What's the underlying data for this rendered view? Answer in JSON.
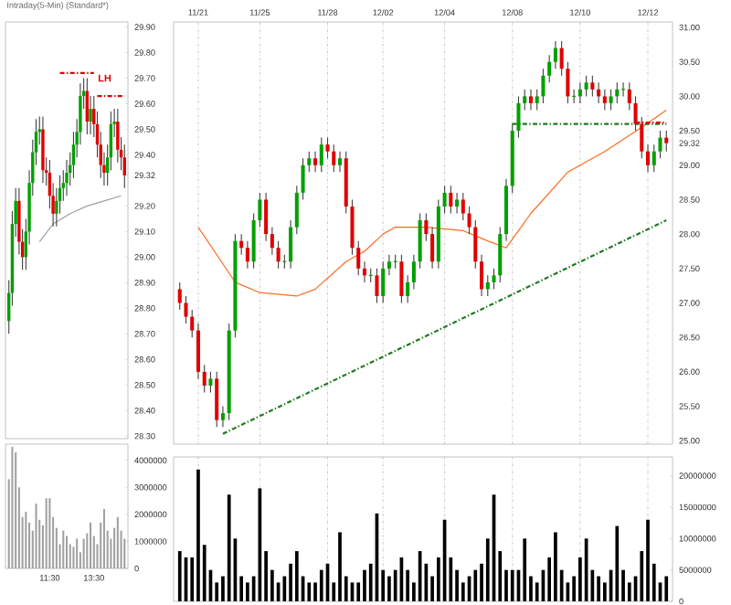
{
  "chart_data": [
    {
      "type": "candlestick",
      "title": "Intraday(5-Min) (Standard*)",
      "categories": [
        null,
        null,
        null,
        null,
        null,
        null,
        null,
        null,
        null,
        null,
        null,
        null,
        null,
        null,
        null,
        null,
        null,
        null,
        null,
        null,
        null,
        null,
        null,
        null,
        null,
        null,
        null,
        null,
        null,
        null,
        null,
        null,
        null,
        null,
        null
      ],
      "ohlc": [
        [
          28.75,
          28.91,
          28.7,
          28.86
        ],
        [
          28.86,
          29.18,
          28.81,
          29.13
        ],
        [
          29.13,
          29.27,
          29.08,
          29.22
        ],
        [
          29.22,
          29.27,
          29.01,
          29.06
        ],
        [
          29.06,
          29.11,
          28.95,
          29.0
        ],
        [
          29.0,
          29.15,
          28.95,
          29.1
        ],
        [
          29.1,
          29.34,
          29.05,
          29.29
        ],
        [
          29.29,
          29.46,
          29.24,
          29.41
        ],
        [
          29.41,
          29.54,
          29.36,
          29.49
        ],
        [
          29.49,
          29.55,
          29.44,
          29.5
        ],
        [
          29.5,
          29.55,
          29.29,
          29.34
        ],
        [
          29.34,
          29.39,
          29.28,
          29.33
        ],
        [
          29.33,
          29.38,
          29.19,
          29.24
        ],
        [
          29.24,
          29.29,
          29.12,
          29.17
        ],
        [
          29.17,
          29.27,
          29.12,
          29.22
        ],
        [
          29.22,
          29.32,
          29.17,
          29.27
        ],
        [
          29.27,
          29.34,
          29.22,
          29.29
        ],
        [
          29.29,
          29.38,
          29.24,
          29.33
        ],
        [
          29.33,
          29.41,
          29.28,
          29.36
        ],
        [
          29.36,
          29.49,
          29.31,
          29.44
        ],
        [
          29.44,
          29.54,
          29.39,
          29.49
        ],
        [
          29.49,
          29.68,
          29.44,
          29.63
        ],
        [
          29.63,
          29.7,
          29.58,
          29.65
        ],
        [
          29.65,
          29.7,
          29.48,
          29.53
        ],
        [
          29.53,
          29.63,
          29.48,
          29.58
        ],
        [
          29.58,
          29.63,
          29.47,
          29.52
        ],
        [
          29.52,
          29.57,
          29.39,
          29.44
        ],
        [
          29.44,
          29.49,
          29.31,
          29.36
        ],
        [
          29.36,
          29.41,
          29.28,
          29.33
        ],
        [
          29.33,
          29.44,
          29.28,
          29.39
        ],
        [
          29.39,
          29.57,
          29.34,
          29.52
        ],
        [
          29.52,
          29.58,
          29.47,
          29.53
        ],
        [
          29.53,
          29.58,
          29.37,
          29.42
        ],
        [
          29.42,
          29.47,
          29.34,
          29.39
        ],
        [
          29.39,
          29.44,
          29.27,
          29.32
        ]
      ],
      "series": [
        {
          "type": "line",
          "color": "#a0a0a0",
          "values": [
            null,
            null,
            null,
            null,
            null,
            null,
            null,
            null,
            null,
            29.06,
            null,
            null,
            null,
            29.13,
            null,
            null,
            null,
            null,
            29.17,
            null,
            null,
            null,
            null,
            29.2,
            null,
            null,
            null,
            null,
            29.22,
            null,
            null,
            null,
            null,
            29.24,
            null
          ]
        },
        {
          "type": "line",
          "color": "#e00000",
          "line_style": "dashed",
          "values": [
            null,
            null,
            null,
            null,
            null,
            null,
            null,
            null,
            null,
            null,
            null,
            null,
            null,
            null,
            null,
            29.72,
            null,
            null,
            null,
            null,
            null,
            null,
            null,
            null,
            null,
            29.72,
            null,
            null,
            null,
            null,
            null,
            null,
            null,
            null,
            null
          ]
        },
        {
          "type": "line",
          "color": "#e00000",
          "line_style": "dashed",
          "values": [
            null,
            null,
            null,
            null,
            null,
            null,
            null,
            null,
            null,
            null,
            null,
            null,
            null,
            null,
            null,
            null,
            null,
            null,
            null,
            null,
            null,
            null,
            null,
            null,
            null,
            null,
            29.63,
            null,
            null,
            null,
            null,
            null,
            null,
            null,
            29.63
          ]
        }
      ],
      "annotations": [
        "LH"
      ],
      "ylim": [
        28.29,
        29.92
      ],
      "yticks": [
        {
          "value": 28.3,
          "label": "28.30"
        },
        {
          "value": 28.4,
          "label": "28.40"
        },
        {
          "value": 28.5,
          "label": "28.50"
        },
        {
          "value": 28.6,
          "label": "28.60"
        },
        {
          "value": 28.7,
          "label": "28.70"
        },
        {
          "value": 28.8,
          "label": "28.80"
        },
        {
          "value": 28.9,
          "label": "28.90"
        },
        {
          "value": 29.0,
          "label": "29.00"
        },
        {
          "value": 29.1,
          "label": "29.10"
        },
        {
          "value": 29.2,
          "label": "29.20"
        },
        29.32,
        {
          "value": 29.4,
          "label": "29.40"
        },
        {
          "value": 29.5,
          "label": "29.50"
        },
        {
          "value": 29.6,
          "label": "29.60"
        },
        {
          "value": 29.7,
          "label": "29.70"
        },
        {
          "value": 29.8,
          "label": "29.80"
        },
        {
          "value": 29.9,
          "label": "29.90"
        }
      ]
    },
    {
      "type": "candlestick",
      "categories": [
        null,
        null,
        null,
        "11/21",
        null,
        null,
        null,
        null,
        null,
        null,
        null,
        null,
        null,
        "11/25",
        null,
        null,
        null,
        null,
        null,
        null,
        null,
        null,
        null,
        null,
        "11/28",
        null,
        null,
        null,
        null,
        null,
        null,
        null,
        null,
        "12/02",
        null,
        null,
        null,
        null,
        null,
        null,
        null,
        null,
        null,
        "12/04",
        null,
        null,
        null,
        null,
        null,
        null,
        null,
        null,
        null,
        null,
        "12/08",
        null,
        null,
        null,
        null,
        null,
        null,
        null,
        null,
        null,
        null,
        "12/10",
        null,
        null,
        null,
        null,
        null,
        null,
        null,
        null,
        null,
        null,
        "12/12",
        null,
        null,
        null
      ],
      "ohlc": [
        [
          27.2,
          27.3,
          26.9,
          27.0
        ],
        [
          27.0,
          27.1,
          26.7,
          26.8
        ],
        [
          26.8,
          26.9,
          26.5,
          26.6
        ],
        [
          26.6,
          26.7,
          25.9,
          26.0
        ],
        [
          26.0,
          26.1,
          25.7,
          25.8
        ],
        [
          25.8,
          26.0,
          25.7,
          25.9
        ],
        [
          25.9,
          26.0,
          25.2,
          25.3
        ],
        [
          25.3,
          25.5,
          25.2,
          25.4
        ],
        [
          25.4,
          26.7,
          25.3,
          26.6
        ],
        [
          26.6,
          28.0,
          26.5,
          27.9
        ],
        [
          27.9,
          28.0,
          27.7,
          27.8
        ],
        [
          27.8,
          27.9,
          27.5,
          27.6
        ],
        [
          27.6,
          28.3,
          27.5,
          28.2
        ],
        [
          28.2,
          28.6,
          28.1,
          28.5
        ],
        [
          28.5,
          28.6,
          27.9,
          28.0
        ],
        [
          28.0,
          28.1,
          27.7,
          27.8
        ],
        [
          27.8,
          27.9,
          27.5,
          27.6
        ],
        [
          27.6,
          27.7,
          27.5,
          27.6
        ],
        [
          27.6,
          28.2,
          27.5,
          28.1
        ],
        [
          28.1,
          28.7,
          28.0,
          28.6
        ],
        [
          28.6,
          29.1,
          28.5,
          29.0
        ],
        [
          29.0,
          29.2,
          28.9,
          29.1
        ],
        [
          29.1,
          29.2,
          28.9,
          29.0
        ],
        [
          29.0,
          29.4,
          28.9,
          29.3
        ],
        [
          29.3,
          29.4,
          29.1,
          29.2
        ],
        [
          29.2,
          29.3,
          28.9,
          29.0
        ],
        [
          29.0,
          29.2,
          28.9,
          29.1
        ],
        [
          29.1,
          29.2,
          28.3,
          28.4
        ],
        [
          28.4,
          28.5,
          27.7,
          27.8
        ],
        [
          27.8,
          27.9,
          27.4,
          27.5
        ],
        [
          27.5,
          27.6,
          27.3,
          27.4
        ],
        [
          27.4,
          27.5,
          27.3,
          27.4
        ],
        [
          27.4,
          27.5,
          27.0,
          27.1
        ],
        [
          27.1,
          27.6,
          27.0,
          27.5
        ],
        [
          27.5,
          27.7,
          27.4,
          27.6
        ],
        [
          27.6,
          27.7,
          27.5,
          27.6
        ],
        [
          27.6,
          27.7,
          27.0,
          27.1
        ],
        [
          27.1,
          27.4,
          27.0,
          27.3
        ],
        [
          27.3,
          27.7,
          27.2,
          27.6
        ],
        [
          27.6,
          28.3,
          27.5,
          28.2
        ],
        [
          28.2,
          28.3,
          27.9,
          28.0
        ],
        [
          28.0,
          28.1,
          27.5,
          27.6
        ],
        [
          27.6,
          28.5,
          27.5,
          28.4
        ],
        [
          28.4,
          28.7,
          28.3,
          28.6
        ],
        [
          28.6,
          28.7,
          28.3,
          28.4
        ],
        [
          28.4,
          28.6,
          28.3,
          28.5
        ],
        [
          28.5,
          28.6,
          28.2,
          28.3
        ],
        [
          28.3,
          28.4,
          28.0,
          28.1
        ],
        [
          28.1,
          28.2,
          27.5,
          27.6
        ],
        [
          27.6,
          27.7,
          27.1,
          27.2
        ],
        [
          27.2,
          27.4,
          27.1,
          27.3
        ],
        [
          27.3,
          27.5,
          27.2,
          27.4
        ],
        [
          27.4,
          28.1,
          27.3,
          28.0
        ],
        [
          28.0,
          28.8,
          27.9,
          28.7
        ],
        [
          28.7,
          29.6,
          28.6,
          29.5
        ],
        [
          29.5,
          30.0,
          29.4,
          29.9
        ],
        [
          29.9,
          30.1,
          29.8,
          30.0
        ],
        [
          30.0,
          30.1,
          29.8,
          29.9
        ],
        [
          29.9,
          30.1,
          29.8,
          30.0
        ],
        [
          30.0,
          30.4,
          29.9,
          30.3
        ],
        [
          30.3,
          30.6,
          30.2,
          30.5
        ],
        [
          30.5,
          30.8,
          30.4,
          30.7
        ],
        [
          30.7,
          30.8,
          30.3,
          30.4
        ],
        [
          30.4,
          30.5,
          29.9,
          30.0
        ],
        [
          30.0,
          30.1,
          29.9,
          30.0
        ],
        [
          30.0,
          30.2,
          29.9,
          30.1
        ],
        [
          30.1,
          30.3,
          30.0,
          30.2
        ],
        [
          30.2,
          30.3,
          30.0,
          30.1
        ],
        [
          30.1,
          30.2,
          29.9,
          30.0
        ],
        [
          30.0,
          30.1,
          29.8,
          29.9
        ],
        [
          29.9,
          30.1,
          29.8,
          30.0
        ],
        [
          30.0,
          30.2,
          29.9,
          30.1
        ],
        [
          30.1,
          30.2,
          30.0,
          30.1
        ],
        [
          30.1,
          30.2,
          29.8,
          29.9
        ],
        [
          29.9,
          30.0,
          29.5,
          29.6
        ],
        [
          29.6,
          29.7,
          29.1,
          29.2
        ],
        [
          29.2,
          29.3,
          28.9,
          29.0
        ],
        [
          29.0,
          29.3,
          28.9,
          29.2
        ],
        [
          29.2,
          29.5,
          29.1,
          29.4
        ],
        [
          29.4,
          29.5,
          29.2,
          29.32
        ]
      ],
      "series": [
        {
          "type": "line",
          "color": "#ff6a20",
          "values": [
            null,
            null,
            null,
            28.1,
            null,
            null,
            null,
            null,
            null,
            27.3,
            null,
            null,
            null,
            27.15,
            null,
            null,
            null,
            null,
            null,
            27.1,
            null,
            null,
            27.2,
            null,
            null,
            null,
            null,
            27.6,
            null,
            null,
            27.75,
            null,
            null,
            28.0,
            null,
            28.1,
            null,
            null,
            null,
            null,
            28.1,
            null,
            null,
            null,
            null,
            null,
            28.05,
            null,
            null,
            null,
            27.9,
            null,
            null,
            27.8,
            null,
            null,
            null,
            28.3,
            null,
            null,
            null,
            null,
            null,
            28.9,
            null,
            null,
            null,
            null,
            null,
            29.2,
            null,
            null,
            null,
            null,
            null,
            29.55,
            null,
            null,
            null,
            29.8
          ]
        },
        {
          "type": "line",
          "color": "#1e7a1e",
          "line_style": "dashed",
          "values": [
            null,
            null,
            null,
            null,
            null,
            null,
            null,
            25.1,
            null,
            null,
            null,
            null,
            null,
            null,
            null,
            null,
            null,
            null,
            null,
            null,
            null,
            null,
            null,
            null,
            null,
            null,
            null,
            null,
            null,
            null,
            null,
            null,
            null,
            null,
            null,
            null,
            null,
            null,
            null,
            null,
            null,
            null,
            null,
            null,
            null,
            null,
            null,
            null,
            null,
            null,
            null,
            null,
            null,
            null,
            null,
            null,
            null,
            null,
            null,
            null,
            null,
            null,
            null,
            null,
            null,
            null,
            null,
            null,
            null,
            null,
            null,
            null,
            null,
            null,
            null,
            null,
            null,
            null,
            null,
            28.2
          ]
        },
        {
          "type": "line",
          "color": "#1e7a1e",
          "line_style": "dashed",
          "values": [
            null,
            null,
            null,
            null,
            null,
            null,
            null,
            null,
            null,
            null,
            null,
            null,
            null,
            null,
            null,
            null,
            null,
            null,
            null,
            null,
            null,
            null,
            null,
            null,
            null,
            null,
            null,
            null,
            null,
            null,
            null,
            null,
            null,
            null,
            null,
            null,
            null,
            null,
            null,
            null,
            null,
            null,
            null,
            null,
            null,
            null,
            null,
            null,
            null,
            null,
            null,
            null,
            null,
            null,
            29.6,
            null,
            null,
            null,
            null,
            null,
            null,
            null,
            null,
            null,
            null,
            null,
            null,
            null,
            null,
            null,
            null,
            null,
            null,
            null,
            null,
            null,
            null,
            null,
            null,
            29.6
          ]
        },
        {
          "type": "line",
          "color": "#e00000",
          "line_style": "dashed",
          "values": [
            null,
            null,
            null,
            null,
            null,
            null,
            null,
            null,
            null,
            null,
            null,
            null,
            null,
            null,
            null,
            null,
            null,
            null,
            null,
            null,
            null,
            null,
            null,
            null,
            null,
            null,
            null,
            null,
            null,
            null,
            null,
            null,
            null,
            null,
            null,
            null,
            null,
            null,
            null,
            null,
            null,
            null,
            null,
            null,
            null,
            null,
            null,
            null,
            null,
            null,
            null,
            null,
            null,
            null,
            null,
            null,
            null,
            null,
            null,
            null,
            null,
            null,
            null,
            null,
            null,
            null,
            null,
            null,
            null,
            null,
            null,
            null,
            null,
            null,
            29.62,
            null,
            null,
            null,
            null,
            29.62
          ]
        }
      ],
      "grid": "x",
      "ylim": [
        24.95,
        31.08
      ],
      "yticks": [
        {
          "value": 25,
          "label": "25.00"
        },
        {
          "value": 25.5,
          "label": "25.50"
        },
        {
          "value": 26,
          "label": "26.00"
        },
        {
          "value": 26.5,
          "label": "26.50"
        },
        {
          "value": 27,
          "label": "27.00"
        },
        {
          "value": 27.5,
          "label": "27.50"
        },
        {
          "value": 28,
          "label": "28.00"
        },
        {
          "value": 28.5,
          "label": "28.50"
        },
        {
          "value": 29,
          "label": "29.00"
        },
        29.32,
        {
          "value": 29.5,
          "label": "29.50"
        },
        {
          "value": 30,
          "label": "30.00"
        },
        {
          "value": 30.5,
          "label": "30.50"
        },
        {
          "value": 31,
          "label": "31.00"
        }
      ]
    },
    {
      "type": "bar",
      "color": "#a0a0a0",
      "categories": [
        null,
        null,
        null,
        null,
        null,
        null,
        null,
        null,
        null,
        null,
        null,
        null,
        "11:30",
        null,
        null,
        null,
        null,
        null,
        null,
        null,
        null,
        null,
        null,
        null,
        null,
        "13:30",
        null,
        null,
        null,
        null,
        null,
        null,
        null,
        null,
        null
      ],
      "values": [
        3300000,
        4500000,
        4300000,
        3000000,
        1900000,
        2100000,
        1700000,
        1400000,
        2400000,
        1800000,
        1600000,
        2600000,
        2600000,
        1900000,
        1500000,
        900000,
        1400000,
        1200000,
        900000,
        800000,
        1100000,
        600000,
        1100000,
        1300000,
        1700000,
        1200000,
        900000,
        1700000,
        2200000,
        1400000,
        1100000,
        1500000,
        1900000,
        1400000,
        1100000
      ],
      "ylim": [
        0,
        4600000
      ],
      "yticks": [
        0,
        1000000,
        2000000,
        3000000,
        4000000
      ]
    },
    {
      "type": "bar",
      "color": "#000000",
      "categories": [
        null,
        null,
        null,
        null,
        null,
        null,
        null,
        null,
        null,
        null,
        null,
        null,
        null,
        null,
        null,
        null,
        null,
        null,
        null,
        null,
        null,
        null,
        null,
        null,
        null,
        null,
        null,
        null,
        null,
        null,
        null,
        null,
        null,
        null,
        null,
        null,
        null,
        null,
        null,
        null,
        null,
        null,
        null,
        null,
        null,
        null,
        null,
        null,
        null,
        null,
        null,
        null,
        null,
        null,
        null,
        null,
        null,
        null,
        null,
        null,
        null,
        null,
        null,
        null,
        null,
        null,
        null,
        null,
        null,
        null,
        null,
        null,
        null,
        null,
        null,
        null,
        null,
        null,
        null,
        null
      ],
      "values": [
        8000000,
        7000000,
        7000000,
        21000000,
        9000000,
        5000000,
        3000000,
        4000000,
        17000000,
        10000000,
        4000000,
        3000000,
        4000000,
        18000000,
        8000000,
        5000000,
        3000000,
        4000000,
        6000000,
        8000000,
        4000000,
        3000000,
        3000000,
        5000000,
        6000000,
        3000000,
        11000000,
        4000000,
        3000000,
        3000000,
        5000000,
        6000000,
        14000000,
        5000000,
        4000000,
        5000000,
        7000000,
        5000000,
        3000000,
        8000000,
        6000000,
        4000000,
        7000000,
        13000000,
        7000000,
        5000000,
        3000000,
        4000000,
        5000000,
        6000000,
        10000000,
        17000000,
        8000000,
        5000000,
        5000000,
        5000000,
        10000000,
        4000000,
        3000000,
        5000000,
        7000000,
        11000000,
        5000000,
        3000000,
        4000000,
        7000000,
        10000000,
        5000000,
        4000000,
        3000000,
        5000000,
        12000000,
        5000000,
        3000000,
        4000000,
        8000000,
        13000000,
        6000000,
        3000000,
        4000000
      ],
      "grid": "x",
      "ylim": [
        0,
        23000000
      ],
      "yticks": [
        0,
        5000000,
        10000000,
        15000000,
        20000000
      ]
    }
  ]
}
